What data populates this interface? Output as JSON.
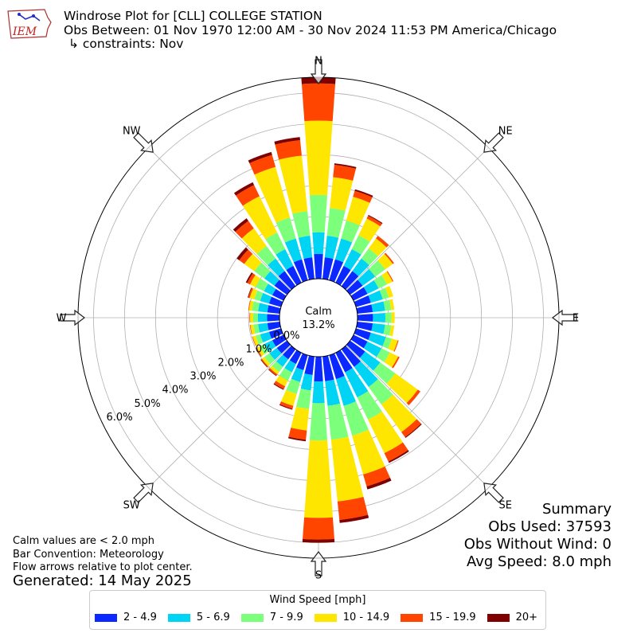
{
  "header": {
    "line1": "Windrose Plot for [CLL] COLLEGE STATION",
    "line2": "Obs Between: 01 Nov 1970 12:00 AM - 30 Nov 2024 11:53 PM America/Chicago",
    "line3": "↳ constraints: Nov",
    "logo_text": "IEM"
  },
  "summary": {
    "title": "Summary",
    "obs_used": "Obs Used: 37593",
    "obs_without_wind": "Obs Without Wind: 0",
    "avg_speed": "Avg Speed: 8.0 mph"
  },
  "notes": {
    "calm": "Calm values are < 2.0 mph",
    "convention": "Bar Convention: Meteorology",
    "flow": "Flow arrows relative to plot center.",
    "generated": "Generated: 14 May 2025"
  },
  "legend": {
    "title": "Wind Speed [mph]"
  },
  "chart_data": {
    "type": "windrose",
    "calm": {
      "label": "Calm",
      "value_text": "13.2%",
      "value": 13.2
    },
    "directions": [
      "N",
      "NE",
      "E",
      "SE",
      "S",
      "SW",
      "W",
      "NW"
    ],
    "radial_ticks": [
      "0.0%",
      "1.0%",
      "2.0%",
      "3.0%",
      "4.0%",
      "5.0%",
      "6.0%"
    ],
    "rmax_percent": 6.5,
    "bin_width_deg": 10,
    "speed_bins": [
      {
        "label": "2 - 4.9",
        "color": "#0a28ff"
      },
      {
        "label": "5 - 6.9",
        "color": "#00d4f4"
      },
      {
        "label": "7 - 9.9",
        "color": "#7cff7a"
      },
      {
        "label": "10 - 14.9",
        "color": "#ffe600"
      },
      {
        "label": "15 - 19.9",
        "color": "#ff4500"
      },
      {
        "label": "20+",
        "color": "#7f0000"
      }
    ],
    "sectors": [
      {
        "dir": 0,
        "values": [
          0.8,
          0.7,
          1.2,
          2.4,
          1.2,
          0.2
        ]
      },
      {
        "dir": 10,
        "values": [
          0.7,
          0.7,
          0.9,
          1.0,
          0.4,
          0.05
        ]
      },
      {
        "dir": 20,
        "values": [
          0.7,
          0.7,
          0.6,
          0.8,
          0.2,
          0.05
        ]
      },
      {
        "dir": 30,
        "values": [
          0.6,
          0.6,
          0.5,
          0.6,
          0.1,
          0.03
        ]
      },
      {
        "dir": 40,
        "values": [
          0.6,
          0.5,
          0.4,
          0.4,
          0.1,
          0.0
        ]
      },
      {
        "dir": 50,
        "values": [
          0.5,
          0.5,
          0.4,
          0.3,
          0.05,
          0.0
        ]
      },
      {
        "dir": 60,
        "values": [
          0.5,
          0.4,
          0.3,
          0.2,
          0.03,
          0.0
        ]
      },
      {
        "dir": 70,
        "values": [
          0.5,
          0.4,
          0.2,
          0.15,
          0.0,
          0.0
        ]
      },
      {
        "dir": 80,
        "values": [
          0.5,
          0.4,
          0.2,
          0.1,
          0.0,
          0.0
        ]
      },
      {
        "dir": 90,
        "values": [
          0.5,
          0.4,
          0.2,
          0.1,
          0.0,
          0.0
        ]
      },
      {
        "dir": 100,
        "values": [
          0.5,
          0.4,
          0.2,
          0.1,
          0.0,
          0.0
        ]
      },
      {
        "dir": 110,
        "values": [
          0.5,
          0.5,
          0.2,
          0.2,
          0.03,
          0.0
        ]
      },
      {
        "dir": 120,
        "values": [
          0.5,
          0.5,
          0.3,
          0.3,
          0.05,
          0.0
        ]
      },
      {
        "dir": 130,
        "values": [
          0.6,
          0.6,
          0.6,
          0.9,
          0.1,
          0.0
        ]
      },
      {
        "dir": 140,
        "values": [
          0.7,
          0.8,
          0.7,
          1.1,
          0.2,
          0.03
        ]
      },
      {
        "dir": 150,
        "values": [
          0.7,
          0.9,
          0.8,
          1.2,
          0.3,
          0.05
        ]
      },
      {
        "dir": 160,
        "values": [
          0.8,
          0.9,
          1.0,
          1.3,
          0.4,
          0.1
        ]
      },
      {
        "dir": 170,
        "values": [
          0.8,
          0.8,
          1.1,
          2.0,
          0.6,
          0.1
        ]
      },
      {
        "dir": 180,
        "values": [
          0.8,
          0.7,
          1.2,
          2.5,
          0.7,
          0.1
        ]
      },
      {
        "dir": 190,
        "values": [
          0.6,
          0.5,
          0.6,
          0.7,
          0.3,
          0.05
        ]
      },
      {
        "dir": 200,
        "values": [
          0.5,
          0.4,
          0.4,
          0.4,
          0.1,
          0.03
        ]
      },
      {
        "dir": 210,
        "values": [
          0.4,
          0.3,
          0.3,
          0.2,
          0.1,
          0.03
        ]
      },
      {
        "dir": 220,
        "values": [
          0.4,
          0.3,
          0.2,
          0.1,
          0.05,
          0.02
        ]
      },
      {
        "dir": 230,
        "values": [
          0.4,
          0.3,
          0.2,
          0.1,
          0.03,
          0.02
        ]
      },
      {
        "dir": 240,
        "values": [
          0.4,
          0.3,
          0.15,
          0.1,
          0.03,
          0.01
        ]
      },
      {
        "dir": 250,
        "values": [
          0.4,
          0.3,
          0.15,
          0.1,
          0.02,
          0.0
        ]
      },
      {
        "dir": 260,
        "values": [
          0.4,
          0.3,
          0.15,
          0.1,
          0.02,
          0.0
        ]
      },
      {
        "dir": 270,
        "values": [
          0.4,
          0.3,
          0.15,
          0.1,
          0.02,
          0.0
        ]
      },
      {
        "dir": 280,
        "values": [
          0.4,
          0.3,
          0.2,
          0.1,
          0.02,
          0.0
        ]
      },
      {
        "dir": 290,
        "values": [
          0.4,
          0.3,
          0.2,
          0.15,
          0.05,
          0.02
        ]
      },
      {
        "dir": 300,
        "values": [
          0.4,
          0.3,
          0.3,
          0.2,
          0.1,
          0.05
        ]
      },
      {
        "dir": 310,
        "values": [
          0.5,
          0.4,
          0.4,
          0.4,
          0.2,
          0.1
        ]
      },
      {
        "dir": 320,
        "values": [
          0.6,
          0.5,
          0.5,
          0.7,
          0.3,
          0.1
        ]
      },
      {
        "dir": 330,
        "values": [
          0.6,
          0.6,
          0.6,
          1.3,
          0.4,
          0.1
        ]
      },
      {
        "dir": 340,
        "values": [
          0.7,
          0.7,
          0.7,
          1.7,
          0.4,
          0.1
        ]
      },
      {
        "dir": 350,
        "values": [
          0.7,
          0.7,
          0.8,
          1.8,
          0.5,
          0.1
        ]
      }
    ]
  }
}
